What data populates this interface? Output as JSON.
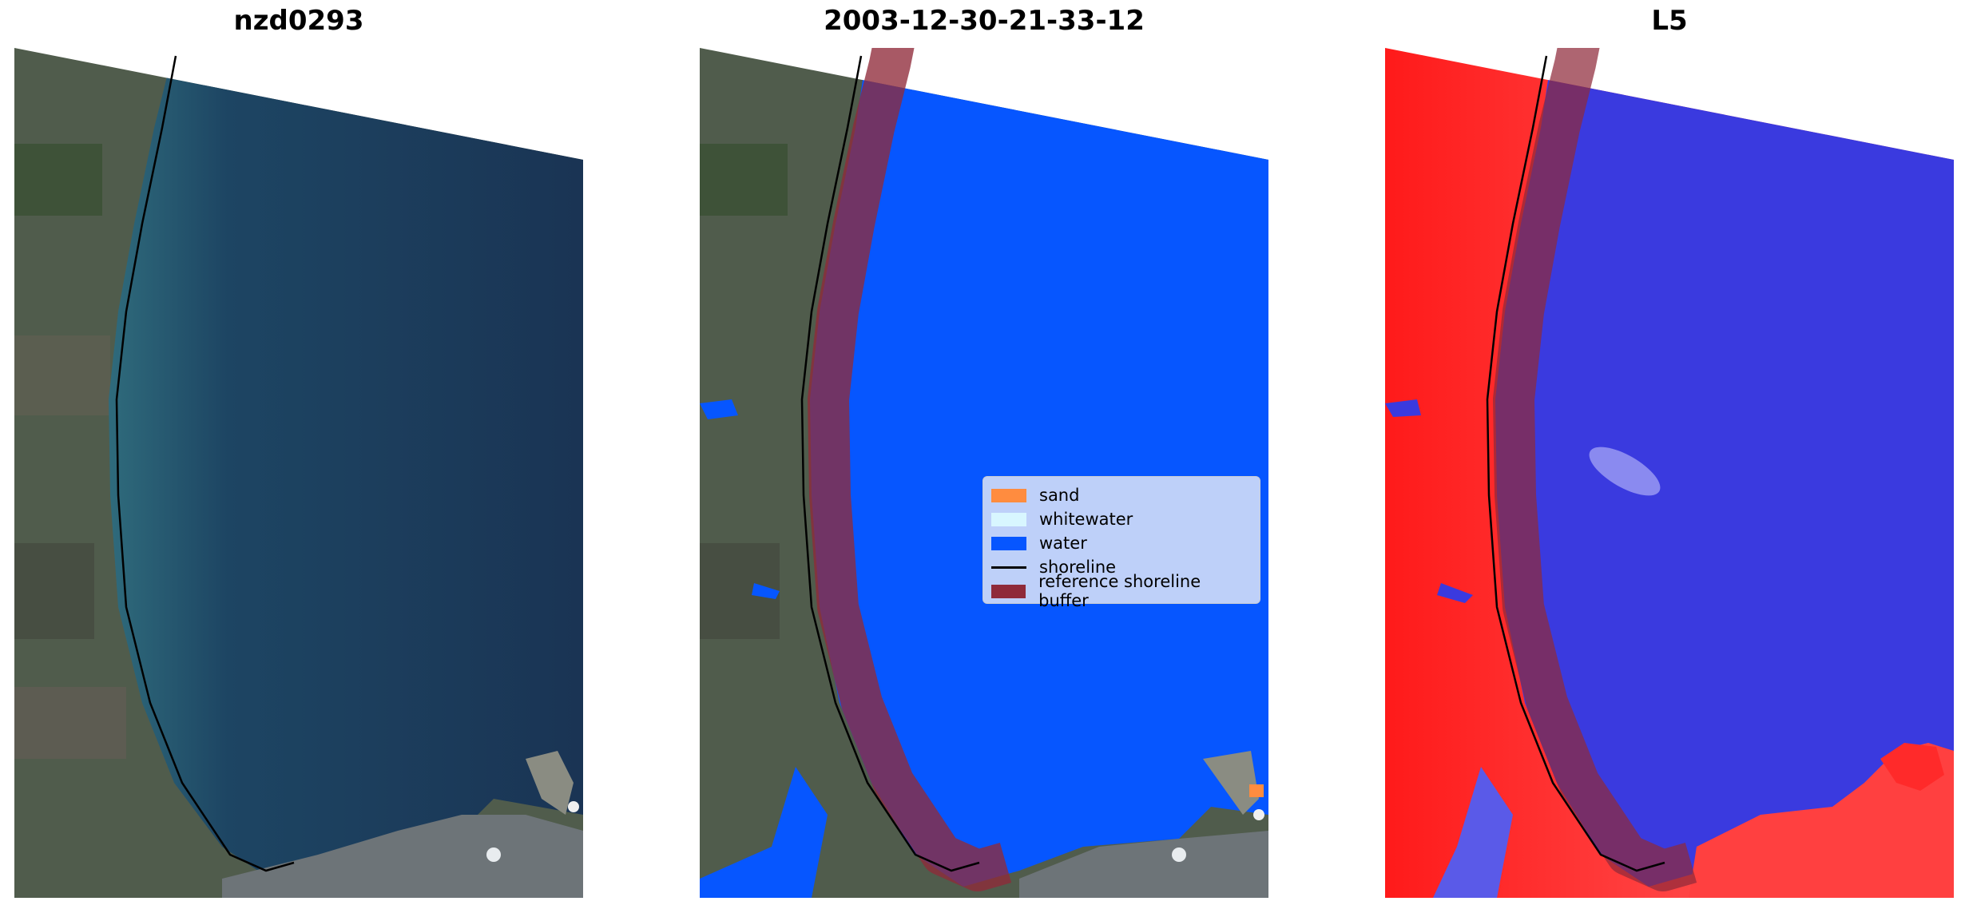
{
  "panels": [
    {
      "title": "nzd0293"
    },
    {
      "title": "2003-12-30-21-33-12"
    },
    {
      "title": "L5"
    }
  ],
  "legend": {
    "items": [
      {
        "label": "sand",
        "color": "#ff8c3f",
        "kind": "patch"
      },
      {
        "label": "whitewater",
        "color": "#d8f6ff",
        "kind": "patch"
      },
      {
        "label": "water",
        "color": "#0656ff",
        "kind": "patch"
      },
      {
        "label": "shoreline",
        "color": "#000000",
        "kind": "line"
      },
      {
        "label": "reference shoreline buffer",
        "color": "#8f2a3a",
        "kind": "patch"
      }
    ]
  },
  "colors": {
    "sea": "#19395a",
    "land": "#4e5a4a",
    "water_class": "#0656ff",
    "buffer": "#8f2a3a",
    "index_land": "#ff2a2a",
    "index_water": "#3a3adf"
  }
}
